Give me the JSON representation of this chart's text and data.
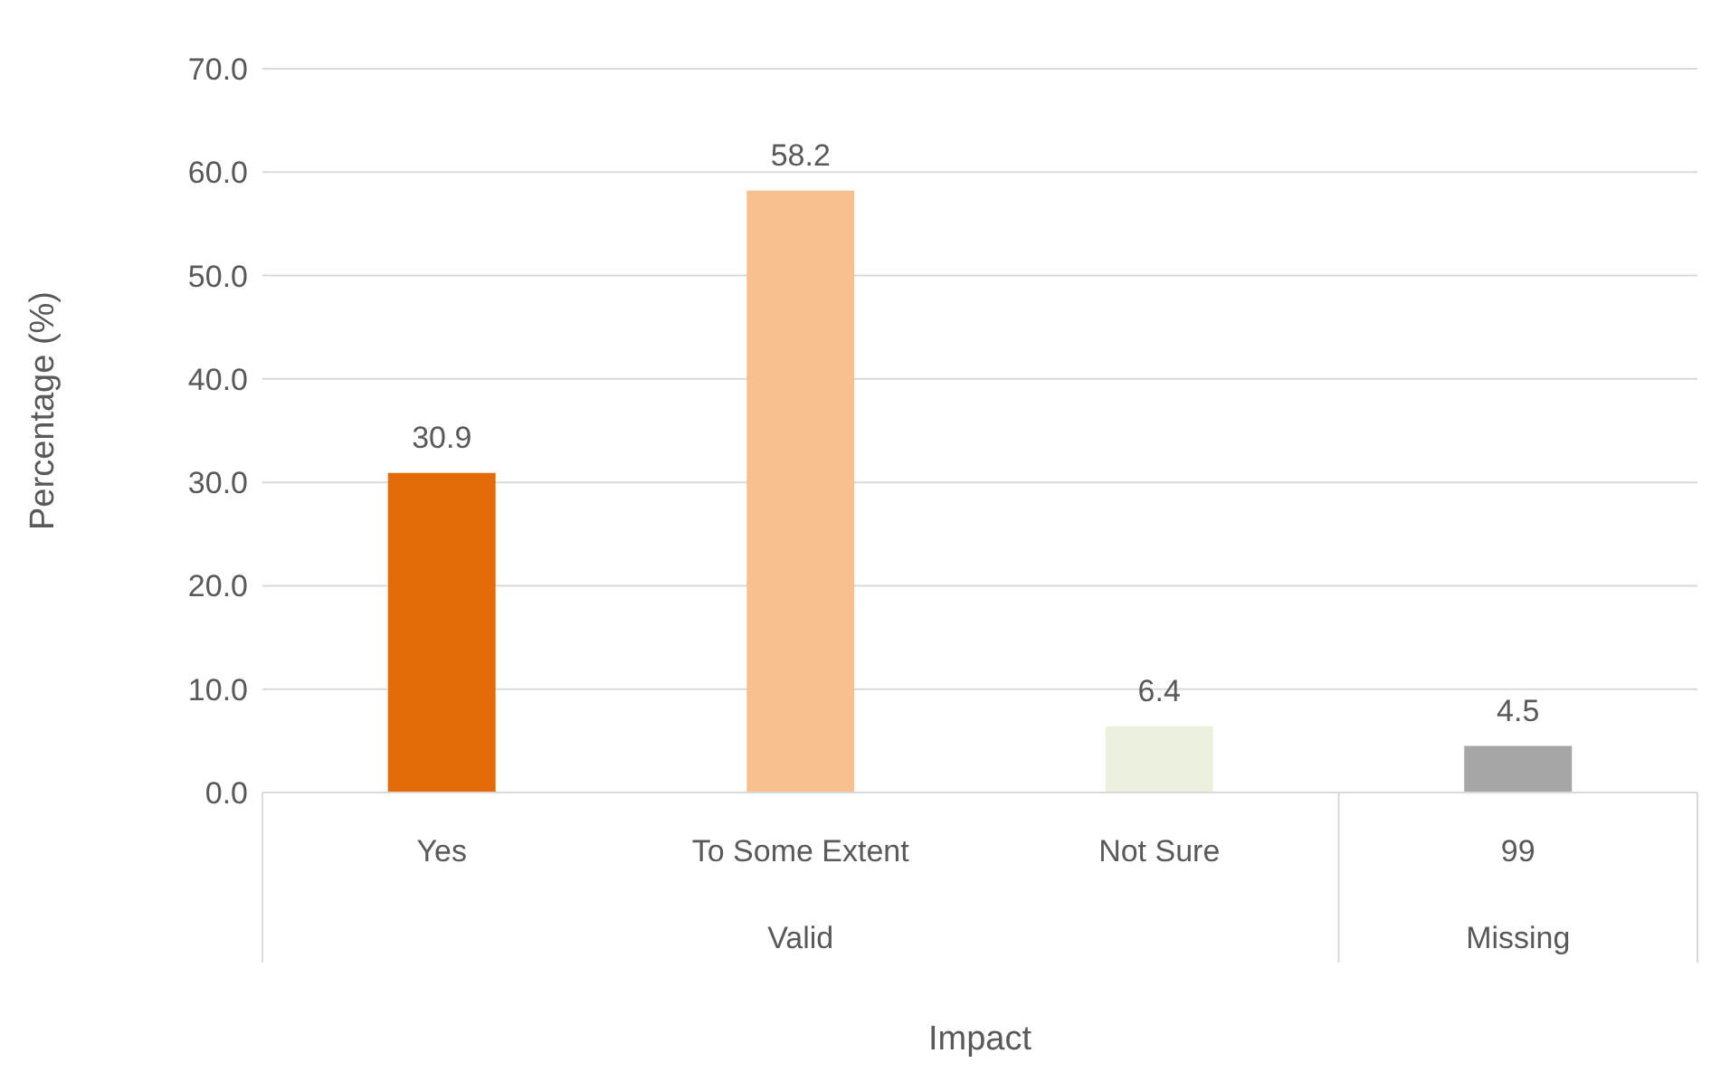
{
  "chart_data": {
    "type": "bar",
    "xlabel": "Impact",
    "ylabel": "Percentage (%)",
    "categories": [
      "Yes",
      "To Some Extent",
      "Not Sure",
      "99"
    ],
    "values": [
      30.9,
      58.2,
      6.4,
      4.5
    ],
    "colors": [
      "#e36c09",
      "#f9c08f",
      "#ebf1de",
      "#a6a6a6"
    ],
    "ylim": [
      0,
      70
    ],
    "yticks": [
      {
        "value": 0,
        "label": "0.0"
      },
      {
        "value": 10,
        "label": "10.0"
      },
      {
        "value": 20,
        "label": "20.0"
      },
      {
        "value": 30,
        "label": "30.0"
      },
      {
        "value": 40,
        "label": "40.0"
      },
      {
        "value": 50,
        "label": "50.0"
      },
      {
        "value": 60,
        "label": "60.0"
      },
      {
        "value": 70,
        "label": "70.0"
      }
    ],
    "grid": "y",
    "data_labels": true,
    "legend": false,
    "annotations": [
      "Valid",
      "Missing"
    ]
  }
}
